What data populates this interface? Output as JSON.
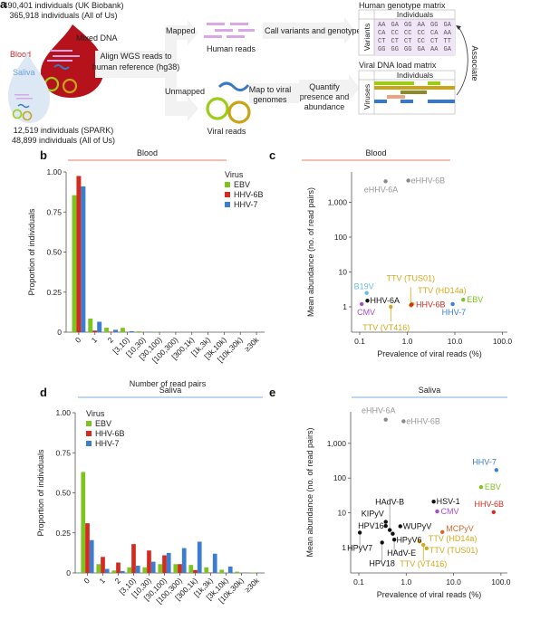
{
  "panel_a": {
    "label": "a",
    "cohort_blood": [
      "490,401 individuals (UK Biobank)",
      "365,918 individuals (All of Us)"
    ],
    "cohort_saliva": [
      "12,519 individuals (SPARK)",
      "48,899 individuals (All of Us)"
    ],
    "mixed_dna": "Mixed DNA",
    "blood": "Blood",
    "saliva": "Saliva",
    "align": [
      "Align WGS reads to",
      "human reference (hg38)"
    ],
    "mapped": "Mapped",
    "unmapped": "Unmapped",
    "human_reads": "Human reads",
    "viral_reads": "Viral reads",
    "call_variants": "Call variants and genotype",
    "map_viral": [
      "Map to viral",
      "genomes"
    ],
    "quantify": [
      "Quantify",
      "presence and",
      "abundance"
    ],
    "genotype_matrix": {
      "title": "Human genotype matrix",
      "col_header": "Individuals",
      "row_header": "Variants",
      "rows": [
        [
          "AA",
          "GA",
          "GG",
          "AA",
          "GG",
          "GA"
        ],
        [
          "CA",
          "CC",
          "CC",
          "CC",
          "CA",
          "AA"
        ],
        [
          "CT",
          "CT",
          "CT",
          "CC",
          "CT",
          "TT"
        ],
        [
          "GG",
          "GG",
          "GG",
          "GA",
          "AA",
          "GA"
        ]
      ]
    },
    "viral_matrix": {
      "title": "Viral DNA load matrix",
      "col_header": "Individuals",
      "row_header": "Viruses"
    },
    "associate": "Associate",
    "colors": {
      "blood": "#b5121b",
      "saliva": "#dce9f5",
      "read_human": "#d9a7e6",
      "ebv": "#9ccc18",
      "ttv": "#c9a416",
      "hhv6b": "#8b8a32",
      "cmv": "#eba383",
      "hhv7": "#3a78c2"
    }
  },
  "chart_data": [
    {
      "panel": "b",
      "type": "bar",
      "title": "Blood",
      "title_color": "#f0a898",
      "xlabel": "Number of read pairs",
      "ylabel": "Proportion of individuals",
      "ylim": [
        0,
        1
      ],
      "yticks": [
        "0",
        "0.25",
        "0.50",
        "0.75",
        "1.00"
      ],
      "categories": [
        "0",
        "1",
        "2",
        "[3,10)",
        "[10,30)",
        "[30,100)",
        "[100,300)",
        "[300,1k)",
        "[1k,3k)",
        "[3k,10k)",
        "[10k,30k)",
        "≥30k"
      ],
      "legend_title": "Virus",
      "legend_position": "top-right",
      "series": [
        {
          "name": "EBV",
          "color": "#7dc41f",
          "values": [
            0.855,
            0.085,
            0.028,
            0.027,
            0.005,
            0.001,
            0,
            0,
            0,
            0,
            0,
            0
          ]
        },
        {
          "name": "HHV-6B",
          "color": "#d42b20",
          "values": [
            0.975,
            0.01,
            0.003,
            0.001,
            0,
            0,
            0,
            0,
            0,
            0,
            0,
            0
          ]
        },
        {
          "name": "HHV-7",
          "color": "#3b7dd0",
          "values": [
            0.91,
            0.065,
            0.015,
            0.006,
            0.002,
            0.001,
            0,
            0,
            0,
            0,
            0,
            0
          ]
        }
      ]
    },
    {
      "panel": "c",
      "type": "scatter",
      "title": "Blood",
      "title_color": "#f0a898",
      "xlabel": "Prevalence of viral reads (%)",
      "ylabel": "Mean abundance (no. of read pairs)",
      "xscale": "log",
      "yscale": "log",
      "xticks": [
        "0.1",
        "1.0",
        "10.0",
        "100.0"
      ],
      "yticks": [
        "1",
        "10",
        "100",
        "1,000"
      ],
      "points": [
        {
          "name": "eHHV-6A",
          "x": 0.35,
          "y": 4000,
          "color": "#8a8a8a"
        },
        {
          "name": "eHHV-6B",
          "x": 1.05,
          "y": 4200,
          "color": "#8a8a8a"
        },
        {
          "name": "B19V",
          "x": 0.14,
          "y": 2.5,
          "color": "#6bbbe3"
        },
        {
          "name": "HHV-6A",
          "x": 0.145,
          "y": 1.5,
          "color": "#111111"
        },
        {
          "name": "CMV",
          "x": 0.11,
          "y": 1.2,
          "color": "#a64dc9"
        },
        {
          "name": "TTV (VT416)",
          "x": 0.45,
          "y": 1.0,
          "color": "#d4a81a"
        },
        {
          "name": "TTV (TUS01)",
          "x": 1.18,
          "y": 1.1,
          "color": "#d4a81a"
        },
        {
          "name": "TTV (HD14a)",
          "x": 1.28,
          "y": 1.2,
          "color": "#d4a81a"
        },
        {
          "name": "HHV-6B",
          "x": 1.22,
          "y": 1.15,
          "color": "#d42b20"
        },
        {
          "name": "EBV",
          "x": 15,
          "y": 1.6,
          "color": "#7dc41f"
        },
        {
          "name": "HHV-7",
          "x": 9,
          "y": 1.2,
          "color": "#3b7dd0"
        }
      ]
    },
    {
      "panel": "d",
      "type": "bar",
      "title": "Saliva",
      "title_color": "#a9c8e8",
      "xlabel": "Number of read pairs",
      "ylabel": "Proportion of individuals",
      "ylim": [
        0,
        1
      ],
      "yticks": [
        "0",
        "0.25",
        "0.50",
        "0.75",
        "1.00"
      ],
      "categories": [
        "0",
        "1",
        "2",
        "[3,10)",
        "[10,30)",
        "[30,100)",
        "[100,300)",
        "[300,1k)",
        "[1k,3k)",
        "[3k,10k)",
        "[10k,30k)",
        "≥30k"
      ],
      "legend_title": "Virus",
      "legend_position": "top-left",
      "series": [
        {
          "name": "EBV",
          "color": "#7dc41f",
          "values": [
            0.63,
            0.055,
            0.015,
            0.035,
            0.035,
            0.055,
            0.055,
            0.05,
            0.035,
            0.02,
            0.008,
            0.003
          ]
        },
        {
          "name": "HHV-6B",
          "color": "#d42b20",
          "values": [
            0.31,
            0.1,
            0.065,
            0.18,
            0.14,
            0.11,
            0.055,
            0.018,
            0.003,
            0,
            0,
            0
          ]
        },
        {
          "name": "HHV-7",
          "color": "#3b7dd0",
          "values": [
            0.205,
            0.025,
            0.012,
            0.045,
            0.07,
            0.125,
            0.155,
            0.195,
            0.12,
            0.04,
            0.002,
            0
          ]
        }
      ]
    },
    {
      "panel": "e",
      "type": "scatter",
      "title": "Saliva",
      "title_color": "#a9c8e8",
      "xlabel": "Prevalence of viral reads (%)",
      "ylabel": "Mean abundance (no. of read pairs)",
      "xscale": "log",
      "yscale": "log",
      "xticks": [
        "0.1",
        "1.0",
        "10.0",
        "100.0"
      ],
      "yticks": [
        "1",
        "10",
        "100",
        "1,000"
      ],
      "points": [
        {
          "name": "eHHV-6A",
          "x": 0.37,
          "y": 4800,
          "color": "#8a8a8a"
        },
        {
          "name": "eHHV-6B",
          "x": 0.88,
          "y": 4300,
          "color": "#8a8a8a"
        },
        {
          "name": "HHV-7",
          "x": 80,
          "y": 170,
          "color": "#3b7dd0"
        },
        {
          "name": "EBV",
          "x": 38,
          "y": 55,
          "color": "#7dc41f"
        },
        {
          "name": "HHV-6B",
          "x": 70,
          "y": 10.5,
          "color": "#d42b20"
        },
        {
          "name": "HSV-1",
          "x": 3.8,
          "y": 21,
          "color": "#111111"
        },
        {
          "name": "CMV",
          "x": 4.5,
          "y": 11,
          "color": "#a64dc9"
        },
        {
          "name": "MCPyV",
          "x": 5.8,
          "y": 2.8,
          "color": "#d9662a"
        },
        {
          "name": "TTV (HD14a)",
          "x": 1.9,
          "y": 1.5,
          "color": "#d4a81a"
        },
        {
          "name": "TTV (VT416)",
          "x": 2.3,
          "y": 1.2,
          "color": "#d4a81a"
        },
        {
          "name": "TTV (TUS01)",
          "x": 2.7,
          "y": 0.95,
          "color": "#d4a81a"
        },
        {
          "name": "HAdV-B",
          "x": 0.45,
          "y": 3.2,
          "color": "#111111"
        },
        {
          "name": "KIPyV",
          "x": 0.37,
          "y": 5.5,
          "color": "#111111"
        },
        {
          "name": "HPV16",
          "x": 0.37,
          "y": 4.2,
          "color": "#111111"
        },
        {
          "name": "WUPyV",
          "x": 0.75,
          "y": 4.1,
          "color": "#111111"
        },
        {
          "name": "HPyV6",
          "x": 0.52,
          "y": 2.5,
          "color": "#111111"
        },
        {
          "name": "HAdV-E",
          "x": 0.56,
          "y": 1.7,
          "color": "#111111"
        },
        {
          "name": "HPV18",
          "x": 0.31,
          "y": 1.4,
          "color": "#111111"
        },
        {
          "name": "HPyV7",
          "x": 0.105,
          "y": 2.7,
          "color": "#111111"
        }
      ]
    }
  ]
}
